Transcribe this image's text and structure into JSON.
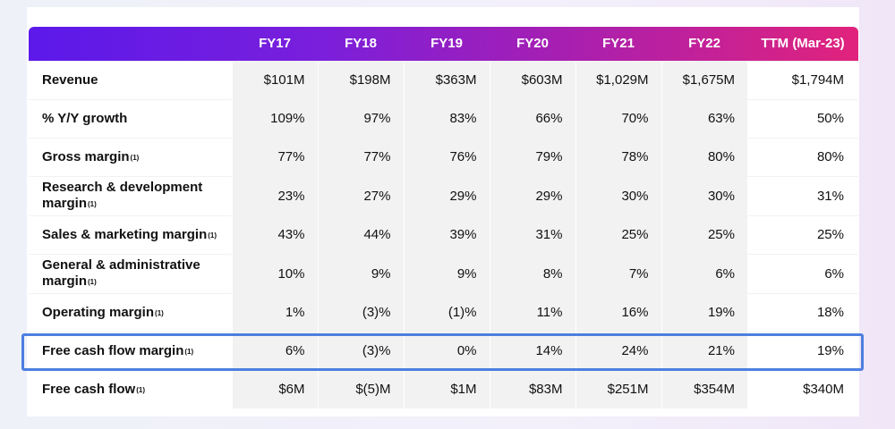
{
  "table": {
    "columns": [
      "",
      "FY17",
      "FY18",
      "FY19",
      "FY20",
      "FY21",
      "FY22",
      "TTM (Mar-23)"
    ],
    "footnote_marker": "(1)",
    "rows": [
      {
        "label": "Revenue",
        "fn": "",
        "values": [
          "$101M",
          "$198M",
          "$363M",
          "$603M",
          "$1,029M",
          "$1,675M",
          "$1,794M"
        ]
      },
      {
        "label": "% Y/Y growth",
        "fn": "",
        "values": [
          "109%",
          "97%",
          "83%",
          "66%",
          "70%",
          "63%",
          "50%"
        ]
      },
      {
        "label": "Gross margin",
        "fn": "(1)",
        "values": [
          "77%",
          "77%",
          "76%",
          "79%",
          "78%",
          "80%",
          "80%"
        ]
      },
      {
        "label": "Research & development margin",
        "fn": "(1)",
        "values": [
          "23%",
          "27%",
          "29%",
          "29%",
          "30%",
          "30%",
          "31%"
        ]
      },
      {
        "label": "Sales & marketing margin",
        "fn": "(1)",
        "values": [
          "43%",
          "44%",
          "39%",
          "31%",
          "25%",
          "25%",
          "25%"
        ]
      },
      {
        "label": "General & administrative margin",
        "fn": "(1)",
        "values": [
          "10%",
          "9%",
          "9%",
          "8%",
          "7%",
          "6%",
          "6%"
        ]
      },
      {
        "label": "Operating margin",
        "fn": "(1)",
        "values": [
          "1%",
          "(3)%",
          "(1)%",
          "11%",
          "16%",
          "19%",
          "18%"
        ]
      },
      {
        "label": "Free cash flow margin",
        "fn": "(1)",
        "values": [
          "6%",
          "(3)%",
          "0%",
          "14%",
          "24%",
          "21%",
          "19%"
        ]
      },
      {
        "label": "Free cash flow",
        "fn": "(1)",
        "values": [
          "$6M",
          "$(5)M",
          "$1M",
          "$83M",
          "$251M",
          "$354M",
          "$340M"
        ]
      }
    ],
    "highlighted_row": "Free cash flow margin",
    "colors": {
      "header_gradient_start": "#5b19ea",
      "header_gradient_end": "#e1237c",
      "highlight_border": "#4c7fe0",
      "shaded_cell": "#f2f2f2"
    }
  }
}
